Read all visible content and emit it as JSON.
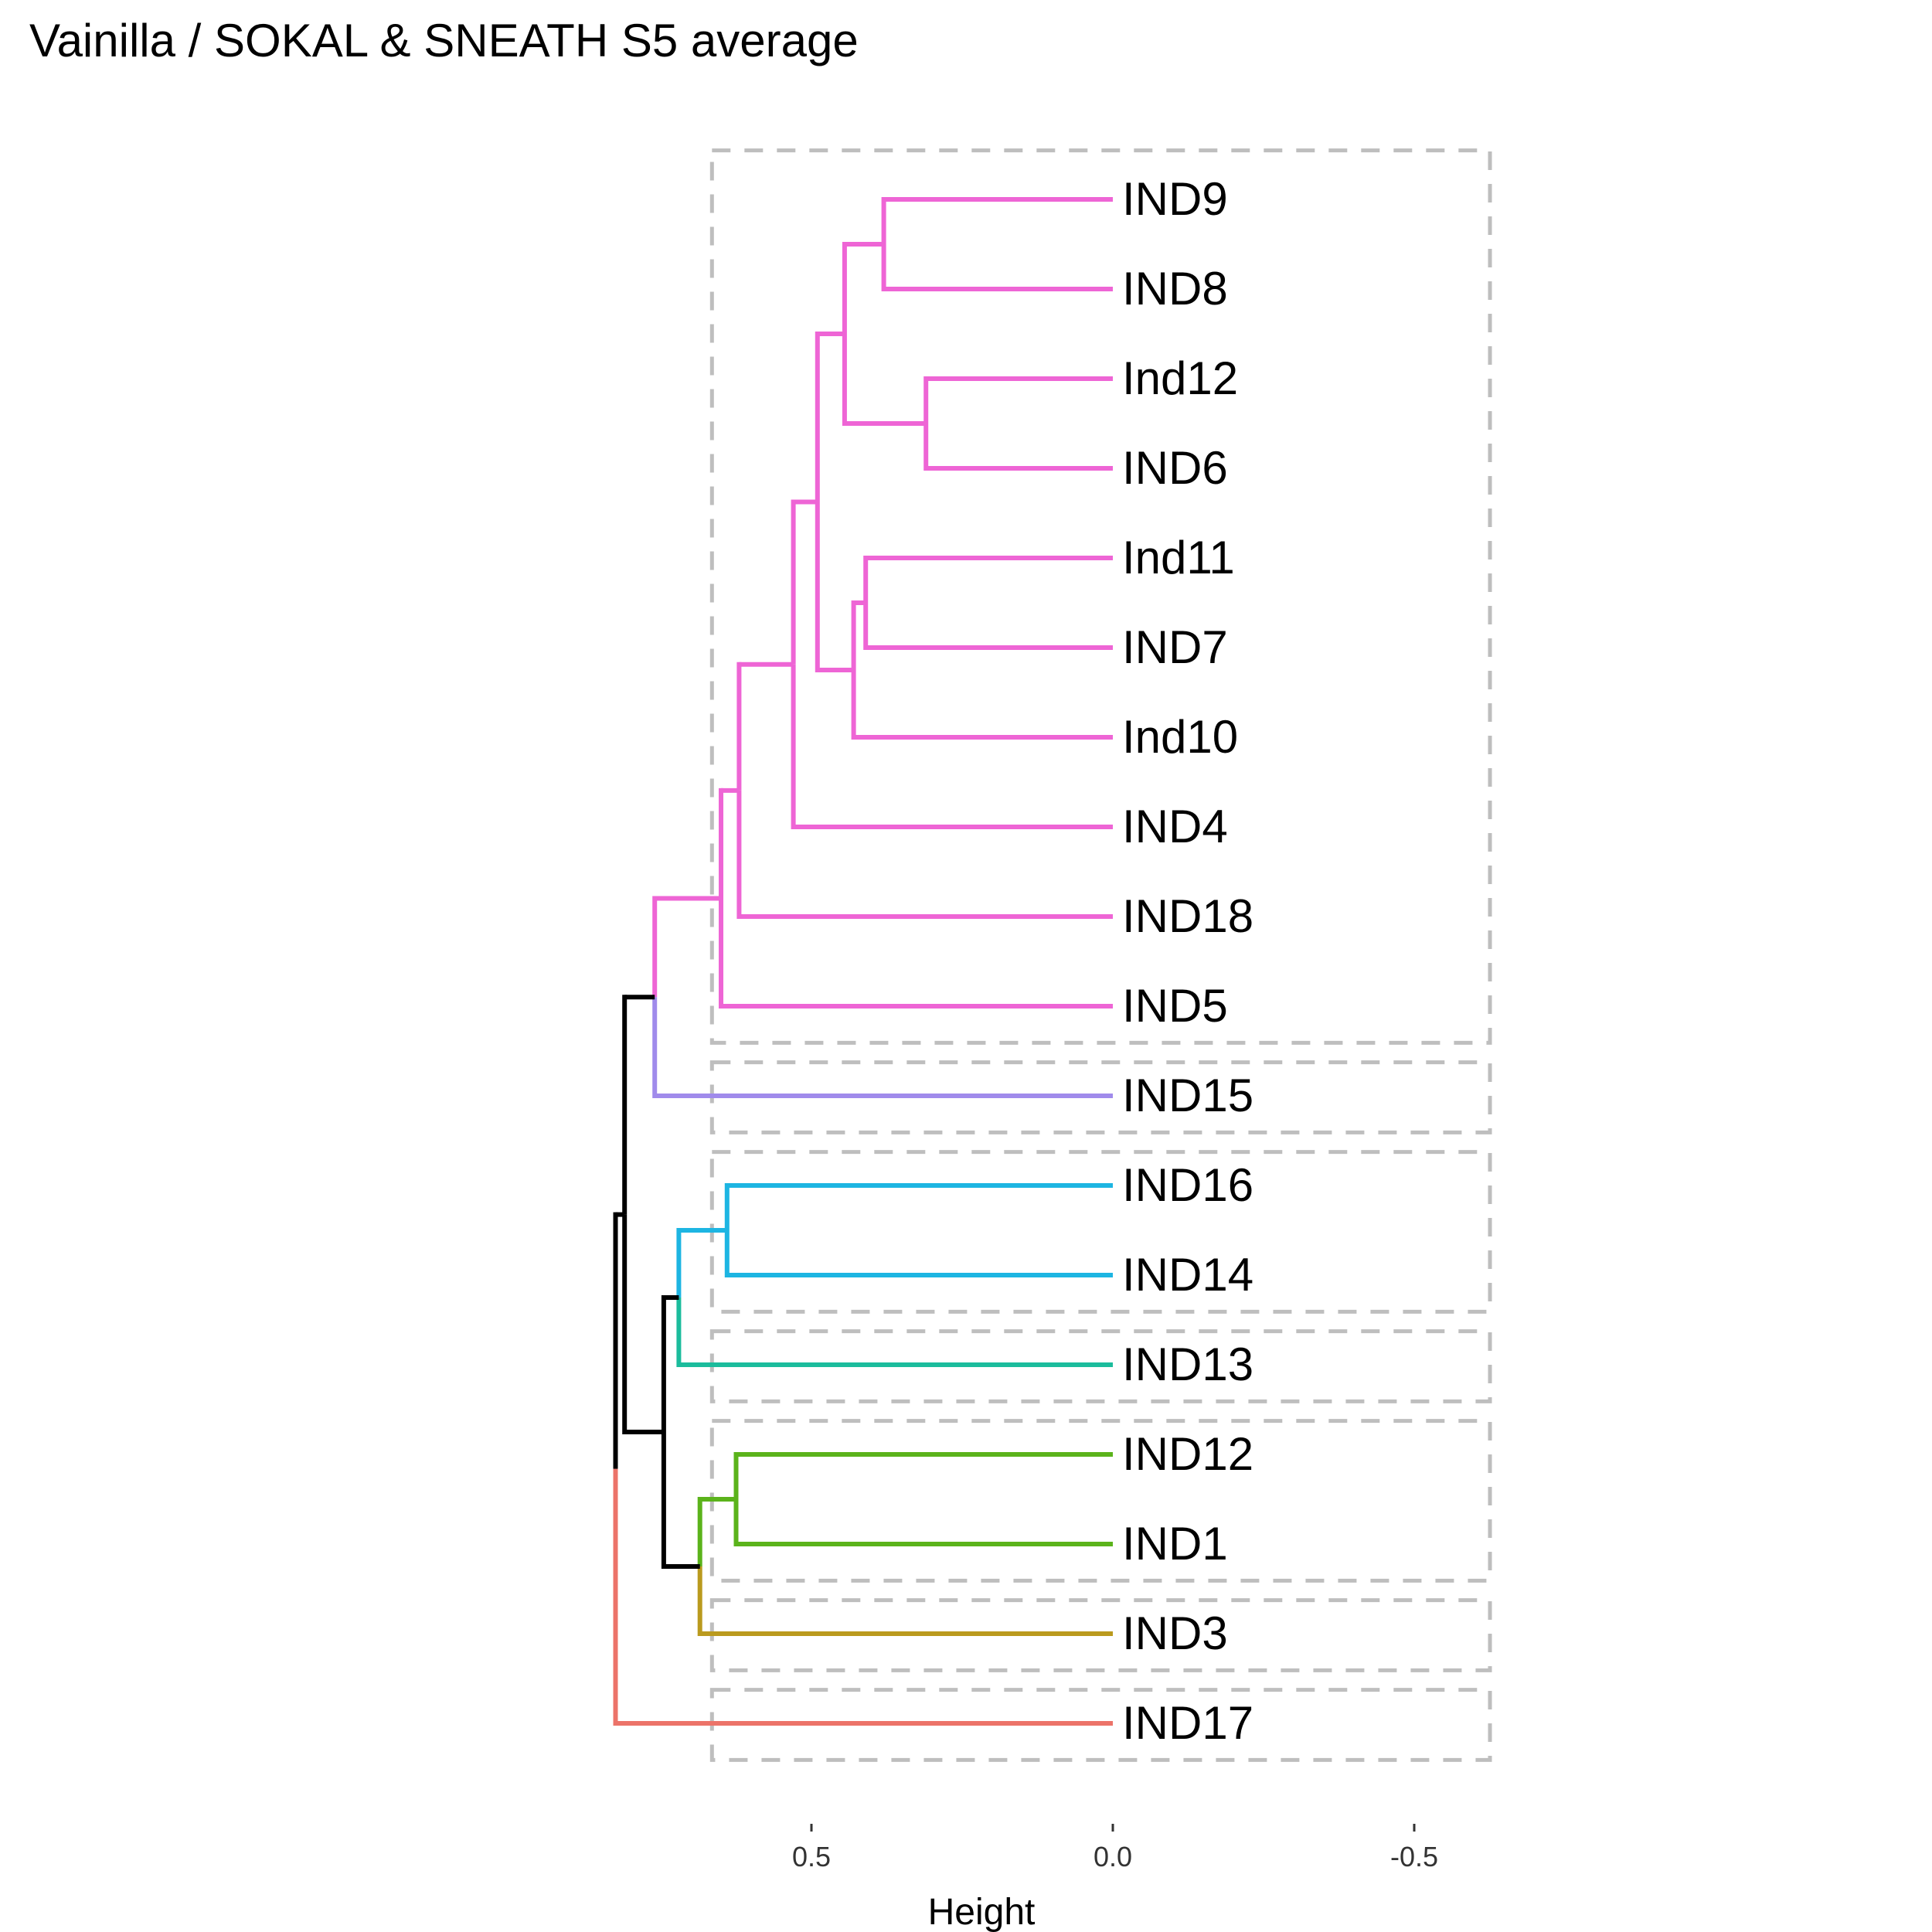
{
  "title": "Vainilla / SOKAL & SNEATH S5 average",
  "chart_data": {
    "type": "dendrogram",
    "orientation": "horizontal",
    "xlabel": "Height",
    "xlim": [
      1.0,
      -0.6
    ],
    "ticks": [
      {
        "value": 0.5,
        "label": "0.5"
      },
      {
        "value": 0.0,
        "label": "0.0"
      },
      {
        "value": -0.5,
        "label": "-0.5"
      }
    ],
    "leaves": [
      {
        "label": "IND9",
        "color": "#EE65D5"
      },
      {
        "label": "IND8",
        "color": "#EE65D5"
      },
      {
        "label": "Ind12",
        "color": "#EE65D5"
      },
      {
        "label": "IND6",
        "color": "#EE65D5"
      },
      {
        "label": "Ind11",
        "color": "#EE65D5"
      },
      {
        "label": "IND7",
        "color": "#EE65D5"
      },
      {
        "label": "Ind10",
        "color": "#EE65D5"
      },
      {
        "label": "IND4",
        "color": "#EE65D5"
      },
      {
        "label": "IND18",
        "color": "#EE65D5"
      },
      {
        "label": "IND5",
        "color": "#EE65D5"
      },
      {
        "label": "IND15",
        "color": "#A08BEB"
      },
      {
        "label": "IND16",
        "color": "#1DB5E2"
      },
      {
        "label": "IND14",
        "color": "#1DB5E2"
      },
      {
        "label": "IND13",
        "color": "#1BBC9C"
      },
      {
        "label": "IND12",
        "color": "#5BB31B"
      },
      {
        "label": "IND1",
        "color": "#5BB31B"
      },
      {
        "label": "IND3",
        "color": "#BA9A1E"
      },
      {
        "label": "IND17",
        "color": "#EC7369"
      }
    ],
    "merges": [
      {
        "a": "IND9",
        "b": "IND8",
        "height": 0.38,
        "color": "#EE65D5"
      },
      {
        "a": "Ind12",
        "b": "IND6",
        "height": 0.31,
        "color": "#EE65D5"
      },
      {
        "a": "Ind11",
        "b": "IND7",
        "height": 0.41,
        "color": "#EE65D5"
      },
      {
        "a": "Ind11+IND7",
        "b": "Ind10",
        "height": 0.43,
        "color": "#EE65D5"
      },
      {
        "a": "IND9..IND8",
        "b": "Ind12..IND6",
        "height": 0.445,
        "color": "#EE65D5"
      },
      {
        "a": "IND9..IND6",
        "b": "Ind11..Ind10",
        "height": 0.49,
        "color": "#EE65D5"
      },
      {
        "a": "IND9..Ind10",
        "b": "IND4",
        "height": 0.53,
        "color": "#EE65D5"
      },
      {
        "a": "IND9..IND4",
        "b": "IND18",
        "height": 0.62,
        "color": "#EE65D5"
      },
      {
        "a": "IND9..IND18",
        "b": "IND5",
        "height": 0.65,
        "color": "#EE65D5"
      },
      {
        "a": "IND9..IND5",
        "b": "IND15",
        "height": 0.76,
        "color": "#000000"
      },
      {
        "a": "IND16",
        "b": "IND14",
        "height": 0.64,
        "color": "#1DB5E2"
      },
      {
        "a": "IND16+IND14",
        "b": "IND13",
        "height": 0.72,
        "color": "#000000"
      },
      {
        "a": "IND12",
        "b": "IND1",
        "height": 0.625,
        "color": "#5BB31B"
      },
      {
        "a": "IND12+IND1",
        "b": "IND3",
        "height": 0.685,
        "color": "#000000"
      },
      {
        "a": "IND16..IND13",
        "b": "IND12..IND3",
        "height": 0.745,
        "color": "#000000"
      },
      {
        "a": "IND9..IND15",
        "b": "IND16..IND3",
        "height": 0.81,
        "color": "#000000"
      },
      {
        "a": "IND9..IND3",
        "b": "IND17",
        "height": 0.825,
        "color": "#000000"
      }
    ],
    "cluster_boxes": [
      {
        "from": "IND9",
        "to": "IND5"
      },
      {
        "from": "IND15",
        "to": "IND15"
      },
      {
        "from": "IND16",
        "to": "IND14"
      },
      {
        "from": "IND13",
        "to": "IND13"
      },
      {
        "from": "IND12",
        "to": "IND1"
      },
      {
        "from": "IND3",
        "to": "IND3"
      },
      {
        "from": "IND17",
        "to": "IND17"
      }
    ],
    "cluster_box_height": 0.665
  }
}
